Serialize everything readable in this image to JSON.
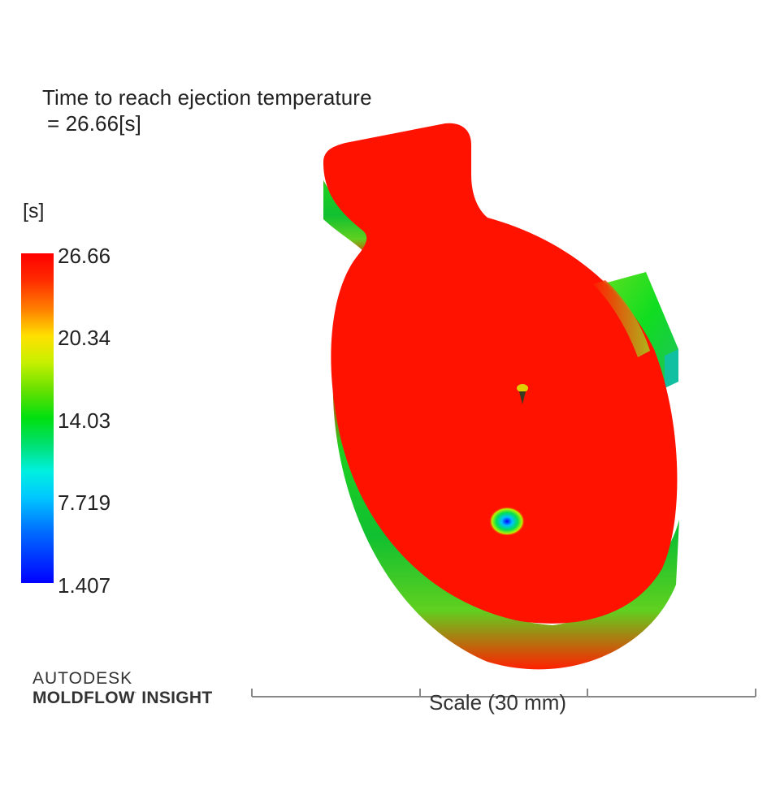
{
  "result": {
    "title": "Time to reach ejection temperature",
    "value_line": " = 26.66[s]"
  },
  "legend": {
    "units": "[s]",
    "ticks": [
      "26.66",
      "20.34",
      "14.03",
      "7.719",
      "1.407"
    ],
    "colors": {
      "max": "#ff0000",
      "upper": "#ffe000",
      "mid": "#00e010",
      "lower": "#00f0e0",
      "min": "#0000ff"
    }
  },
  "branding": {
    "line1": "AUTODESK",
    "line2": "MOLDFLOW",
    "line2b": "INSIGHT"
  },
  "scale": {
    "label": "Scale (30 mm)"
  }
}
